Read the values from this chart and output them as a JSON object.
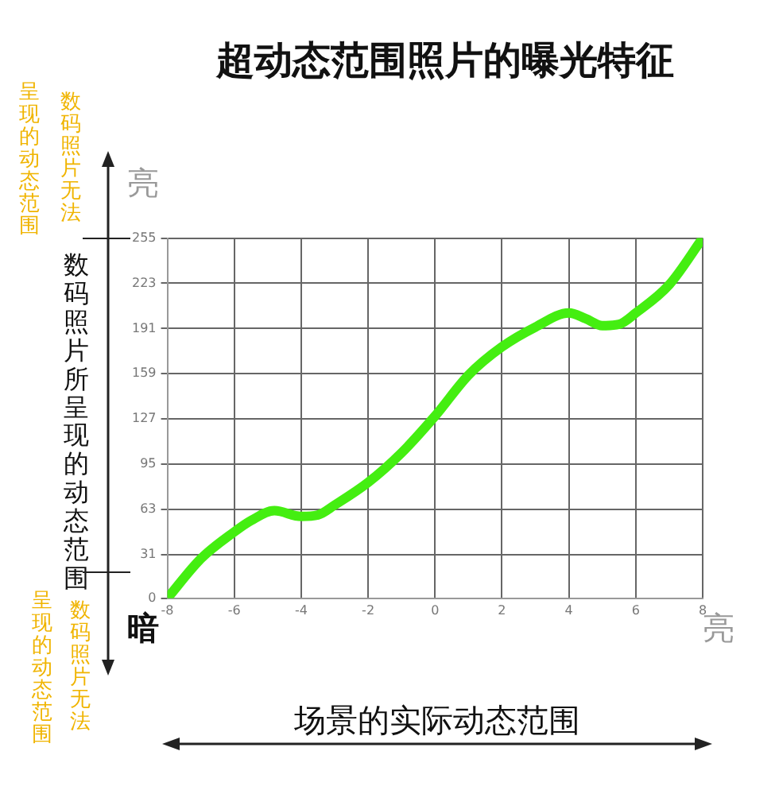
{
  "chart_data": {
    "type": "line",
    "title": "超动态范围照片的曝光特征",
    "xlabel": "场景的实际动态范围",
    "ylabel": "数码照片所呈现的动态范围",
    "annotations": [
      "数码照片无法",
      "呈现的动态范围",
      "亮",
      "暗",
      "数码照片无法",
      "呈现的动态范围",
      "亮"
    ],
    "x": [
      -8,
      -7,
      -6,
      -5.5,
      -4.8,
      -4,
      -3.5,
      -3,
      -2,
      -1,
      0,
      1,
      2,
      3,
      4,
      4.5,
      5,
      5.5,
      6,
      7,
      8
    ],
    "values": [
      0,
      28,
      47,
      55,
      62,
      58,
      59,
      66,
      82,
      103,
      129,
      158,
      178,
      192,
      202,
      198,
      193,
      194,
      202,
      222,
      255
    ],
    "color": "#44ee11",
    "marker": "none",
    "line_style": "solid",
    "xlim": [
      -8,
      8
    ],
    "xticks": [
      -8,
      -6,
      -4,
      -2,
      0,
      2,
      4,
      6,
      8
    ],
    "ylim": [
      0,
      255
    ],
    "yticks": [
      0,
      31,
      63,
      95,
      127,
      159,
      191,
      223,
      255
    ],
    "grid": true
  }
}
